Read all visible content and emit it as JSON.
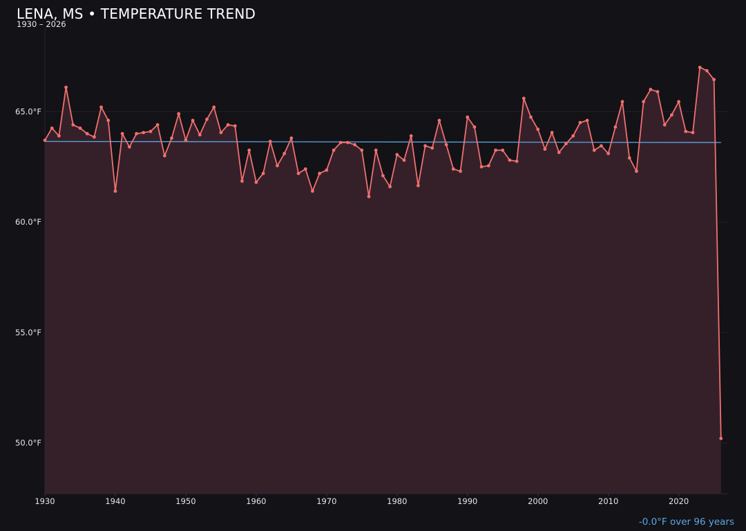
{
  "title": "LENA, MS • TEMPERATURE TREND",
  "subtitle": "1930 – 2026",
  "trend_note": "-0.0°F over 96 years",
  "colors": {
    "background": "#131217",
    "line": "#f0706e",
    "fill": "#35202a",
    "trend": "#5aa9e6",
    "grid": "#231f26"
  },
  "chart_data": {
    "type": "line",
    "title": "LENA, MS • TEMPERATURE TREND",
    "subtitle": "1930 – 2026",
    "xlabel": "",
    "ylabel": "",
    "xlim": [
      1930,
      2027
    ],
    "ylim": [
      47.7,
      68.8
    ],
    "x_ticks": [
      1930,
      1940,
      1950,
      1960,
      1970,
      1980,
      1990,
      2000,
      2010,
      2020
    ],
    "y_ticks": [
      50,
      55,
      60,
      65
    ],
    "y_tick_labels": [
      "50.0°F",
      "55.0°F",
      "60.0°F",
      "65.0°F"
    ],
    "grid": true,
    "area_fill": true,
    "trend_line": {
      "x": [
        1930,
        2026
      ],
      "y": [
        63.65,
        63.6
      ]
    },
    "annotation": "-0.0°F over 96 years",
    "x": [
      1930,
      1931,
      1932,
      1933,
      1934,
      1935,
      1936,
      1937,
      1938,
      1939,
      1940,
      1941,
      1942,
      1943,
      1944,
      1945,
      1946,
      1947,
      1948,
      1949,
      1950,
      1951,
      1952,
      1953,
      1954,
      1955,
      1956,
      1957,
      1958,
      1959,
      1960,
      1961,
      1962,
      1963,
      1964,
      1965,
      1966,
      1967,
      1968,
      1969,
      1970,
      1971,
      1972,
      1973,
      1974,
      1975,
      1976,
      1977,
      1978,
      1979,
      1980,
      1981,
      1982,
      1983,
      1984,
      1985,
      1986,
      1987,
      1988,
      1989,
      1990,
      1991,
      1992,
      1993,
      1994,
      1995,
      1996,
      1997,
      1998,
      1999,
      2000,
      2001,
      2002,
      2003,
      2004,
      2005,
      2006,
      2007,
      2008,
      2009,
      2010,
      2011,
      2012,
      2013,
      2014,
      2015,
      2016,
      2017,
      2018,
      2019,
      2020,
      2021,
      2022,
      2023,
      2024,
      2025,
      2026
    ],
    "series": [
      {
        "values": [
          63.7,
          64.25,
          63.9,
          66.1,
          64.4,
          64.25,
          64.0,
          63.85,
          65.2,
          64.6,
          61.4,
          64.0,
          63.4,
          64.0,
          64.05,
          64.1,
          64.4,
          63.0,
          63.8,
          64.9,
          63.7,
          64.6,
          63.95,
          64.65,
          65.2,
          64.05,
          64.4,
          64.35,
          61.85,
          63.25,
          61.8,
          62.2,
          63.65,
          62.55,
          63.1,
          63.8,
          62.2,
          62.4,
          61.4,
          62.2,
          62.35,
          63.25,
          63.6,
          63.6,
          63.5,
          63.25,
          61.15,
          63.25,
          62.1,
          61.6,
          63.05,
          62.8,
          63.9,
          61.65,
          63.45,
          63.35,
          64.6,
          63.5,
          62.4,
          62.3,
          64.75,
          64.3,
          62.5,
          62.55,
          63.25,
          63.25,
          62.8,
          62.75,
          65.6,
          64.75,
          64.2,
          63.3,
          64.05,
          63.15,
          63.55,
          63.9,
          64.5,
          64.6,
          63.25,
          63.45,
          63.1,
          64.3,
          65.45,
          62.9,
          62.3,
          65.45,
          66.0,
          65.9,
          64.4,
          64.85,
          65.45,
          64.1,
          64.05,
          67.0,
          66.85,
          66.45,
          50.2
        ]
      }
    ]
  }
}
